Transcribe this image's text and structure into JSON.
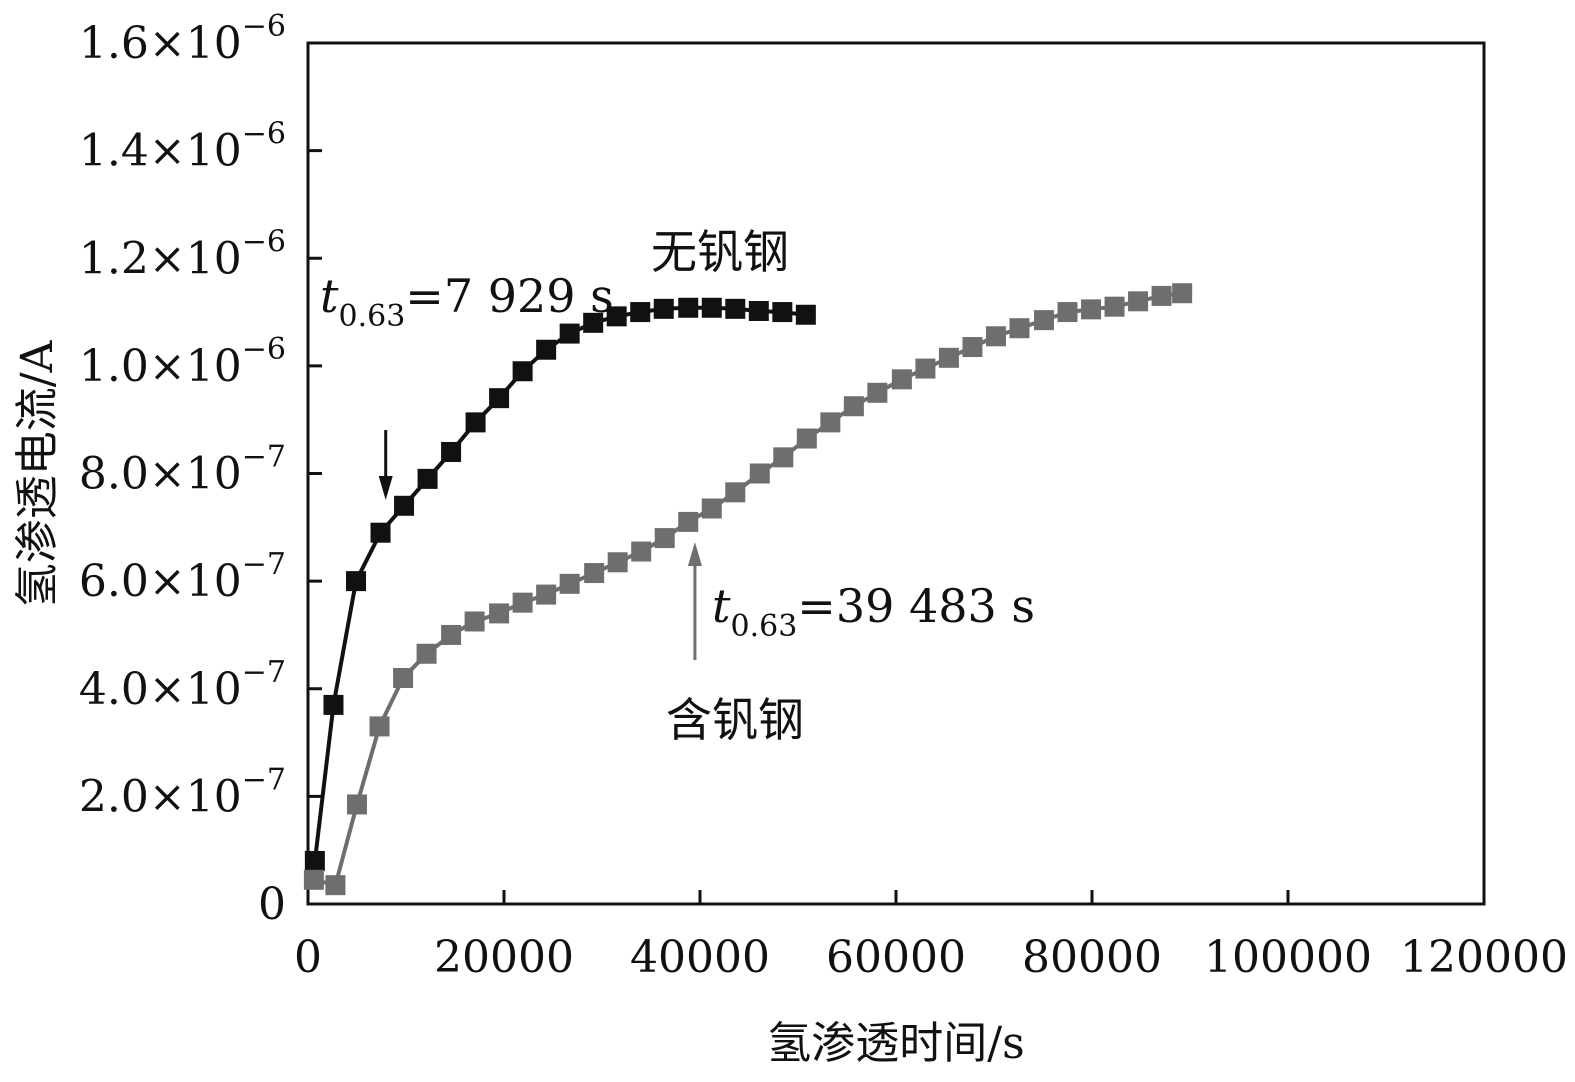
{
  "chart_data": {
    "type": "line",
    "xlabel": "氢渗透时间/s",
    "ylabel": "氢渗透电流/A",
    "xlim": [
      0,
      120000
    ],
    "ylim": [
      0,
      1.6e-06
    ],
    "grid": false,
    "x_ticks": [
      0,
      20000,
      40000,
      60000,
      80000,
      100000,
      120000
    ],
    "x_tick_labels": [
      "0",
      "20000",
      "40000",
      "60000",
      "80000",
      "100000",
      "120000"
    ],
    "y_ticks": [
      0,
      2e-07,
      4e-07,
      6e-07,
      8e-07,
      1e-06,
      1.2e-06,
      1.4e-06,
      1.6e-06
    ],
    "y_tick_labels": [
      {
        "mantissa": "0",
        "exp": ""
      },
      {
        "mantissa": "2.0×10",
        "exp": "−7"
      },
      {
        "mantissa": "4.0×10",
        "exp": "−7"
      },
      {
        "mantissa": "6.0×10",
        "exp": "−7"
      },
      {
        "mantissa": "8.0×10",
        "exp": "−7"
      },
      {
        "mantissa": "1.0×10",
        "exp": "−6"
      },
      {
        "mantissa": "1.2×10",
        "exp": "−6"
      },
      {
        "mantissa": "1.4×10",
        "exp": "−6"
      },
      {
        "mantissa": "1.6×10",
        "exp": "−6"
      }
    ],
    "series": [
      {
        "name": "无钒钢",
        "color": "#111111",
        "points": [
          [
            700,
            8e-08
          ],
          [
            2600,
            3.7e-07
          ],
          [
            4900,
            6e-07
          ],
          [
            7400,
            6.9e-07
          ],
          [
            9800,
            7.4e-07
          ],
          [
            12200,
            7.9e-07
          ],
          [
            14600,
            8.4e-07
          ],
          [
            17100,
            8.95e-07
          ],
          [
            19500,
            9.4e-07
          ],
          [
            21900,
            9.9e-07
          ],
          [
            24300,
            1.03e-06
          ],
          [
            26700,
            1.06e-06
          ],
          [
            29100,
            1.08e-06
          ],
          [
            31500,
            1.092e-06
          ],
          [
            33900,
            1.1e-06
          ],
          [
            36300,
            1.106e-06
          ],
          [
            38800,
            1.108e-06
          ],
          [
            41200,
            1.108e-06
          ],
          [
            43600,
            1.106e-06
          ],
          [
            46000,
            1.102e-06
          ],
          [
            48400,
            1.1e-06
          ],
          [
            50800,
            1.095e-06
          ]
        ]
      },
      {
        "name": "含钒钢",
        "color": "#6e6e6e",
        "points": [
          [
            600,
            4.5e-08
          ],
          [
            2800,
            3.5e-08
          ],
          [
            5000,
            1.85e-07
          ],
          [
            7300,
            3.3e-07
          ],
          [
            9700,
            4.2e-07
          ],
          [
            12100,
            4.65e-07
          ],
          [
            14600,
            5e-07
          ],
          [
            17000,
            5.25e-07
          ],
          [
            19500,
            5.4e-07
          ],
          [
            21900,
            5.6e-07
          ],
          [
            24300,
            5.75e-07
          ],
          [
            26700,
            5.95e-07
          ],
          [
            29200,
            6.15e-07
          ],
          [
            31600,
            6.35e-07
          ],
          [
            34000,
            6.55e-07
          ],
          [
            36400,
            6.8e-07
          ],
          [
            38800,
            7.1e-07
          ],
          [
            41200,
            7.35e-07
          ],
          [
            43600,
            7.65e-07
          ],
          [
            46100,
            8e-07
          ],
          [
            48500,
            8.3e-07
          ],
          [
            50900,
            8.65e-07
          ],
          [
            53300,
            8.95e-07
          ],
          [
            55700,
            9.25e-07
          ],
          [
            58100,
            9.5e-07
          ],
          [
            60600,
            9.75e-07
          ],
          [
            63000,
            9.95e-07
          ],
          [
            65400,
            1.015e-06
          ],
          [
            67800,
            1.035e-06
          ],
          [
            70200,
            1.055e-06
          ],
          [
            72600,
            1.07e-06
          ],
          [
            75100,
            1.085e-06
          ],
          [
            77500,
            1.1e-06
          ],
          [
            79900,
            1.105e-06
          ],
          [
            82300,
            1.11e-06
          ],
          [
            84700,
            1.12e-06
          ],
          [
            87100,
            1.13e-06
          ],
          [
            89200,
            1.135e-06
          ]
        ]
      }
    ],
    "annotations": {
      "label_no_v": "无钒钢",
      "label_v": "含钒钢",
      "t_no_v": {
        "symbol": "t",
        "sub": "0.63",
        "value": "=7 929 s",
        "arrow_x": 7929
      },
      "t_v": {
        "symbol": "t",
        "sub": "0.63",
        "value": "=39 483 s",
        "arrow_x": 39483
      }
    }
  }
}
